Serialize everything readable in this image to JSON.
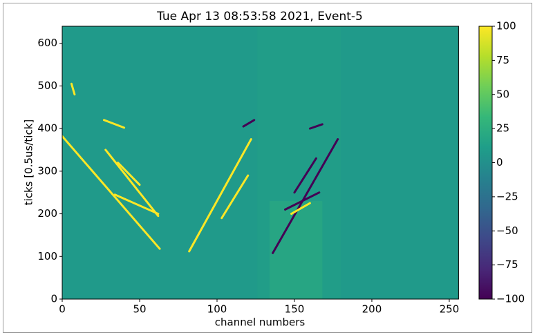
{
  "chart_data": {
    "type": "heatmap",
    "title": "Tue Apr 13 08:53:58 2021, Event-5",
    "xlabel": "channel numbers",
    "ylabel": "ticks [0.5us/tick]",
    "xlim": [
      0,
      256
    ],
    "ylim": [
      0,
      640
    ],
    "xticks": [
      0,
      50,
      100,
      150,
      200,
      250
    ],
    "yticks": [
      0,
      100,
      200,
      300,
      400,
      500,
      600
    ],
    "colormap": "viridis",
    "clim": [
      -100,
      100
    ],
    "cticks": [
      100,
      75,
      50,
      25,
      0,
      {
        "value": -25,
        "label": "−25"
      },
      {
        "value": -50,
        "label": "−50"
      },
      {
        "value": -75,
        "label": "−75"
      },
      {
        "value": -100,
        "label": "−100"
      }
    ],
    "background": 8,
    "regions": [
      {
        "x": [
          134,
          168
        ],
        "y": [
          0,
          230
        ],
        "value": 35
      },
      {
        "x": [
          126,
          180
        ],
        "y": [
          0,
          640
        ],
        "value": 14
      }
    ],
    "features": [
      {
        "x": [
          0,
          63
        ],
        "y": [
          382,
          118
        ],
        "value": 100
      },
      {
        "x": [
          82,
          122
        ],
        "y": [
          112,
          375
        ],
        "value": 100
      },
      {
        "x": [
          136,
          178
        ],
        "y": [
          108,
          375
        ],
        "value": -100
      },
      {
        "x": [
          28,
          62
        ],
        "y": [
          350,
          195
        ],
        "value": 100
      },
      {
        "x": [
          34,
          62
        ],
        "y": [
          245,
          200
        ],
        "value": 100
      },
      {
        "x": [
          36,
          50
        ],
        "y": [
          320,
          268
        ],
        "value": 100
      },
      {
        "x": [
          27,
          40
        ],
        "y": [
          420,
          402
        ],
        "value": 100
      },
      {
        "x": [
          6,
          8
        ],
        "y": [
          505,
          480
        ],
        "value": 100
      },
      {
        "x": [
          103,
          120
        ],
        "y": [
          190,
          290
        ],
        "value": 100
      },
      {
        "x": [
          117,
          124
        ],
        "y": [
          405,
          420
        ],
        "value": -100
      },
      {
        "x": [
          160,
          168
        ],
        "y": [
          400,
          410
        ],
        "value": -100
      },
      {
        "x": [
          144,
          166
        ],
        "y": [
          210,
          250
        ],
        "value": -100
      },
      {
        "x": [
          150,
          164
        ],
        "y": [
          250,
          330
        ],
        "value": -100
      },
      {
        "x": [
          148,
          160
        ],
        "y": [
          200,
          225
        ],
        "value": 100
      }
    ]
  }
}
